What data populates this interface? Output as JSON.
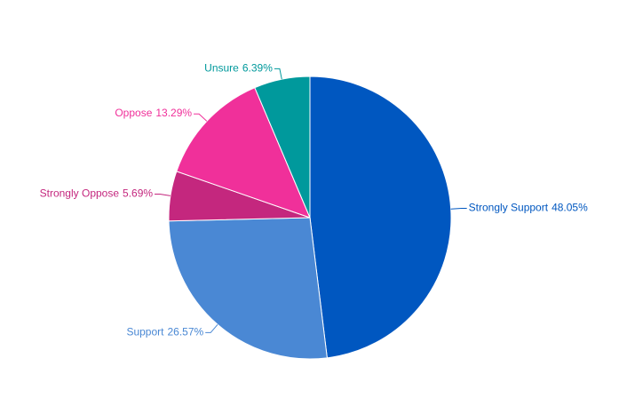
{
  "chart_data": {
    "type": "pie",
    "categories": [
      "Strongly Support",
      "Support",
      "Strongly Oppose",
      "Oppose",
      "Unsure"
    ],
    "values": [
      48.05,
      26.57,
      5.69,
      13.29,
      6.39
    ],
    "value_labels": [
      "48.05%",
      "26.57%",
      "5.69%",
      "13.29%",
      "6.39%"
    ],
    "colors": [
      "#0057c0",
      "#4a88d4",
      "#c4277e",
      "#f0309a",
      "#00999c"
    ]
  }
}
